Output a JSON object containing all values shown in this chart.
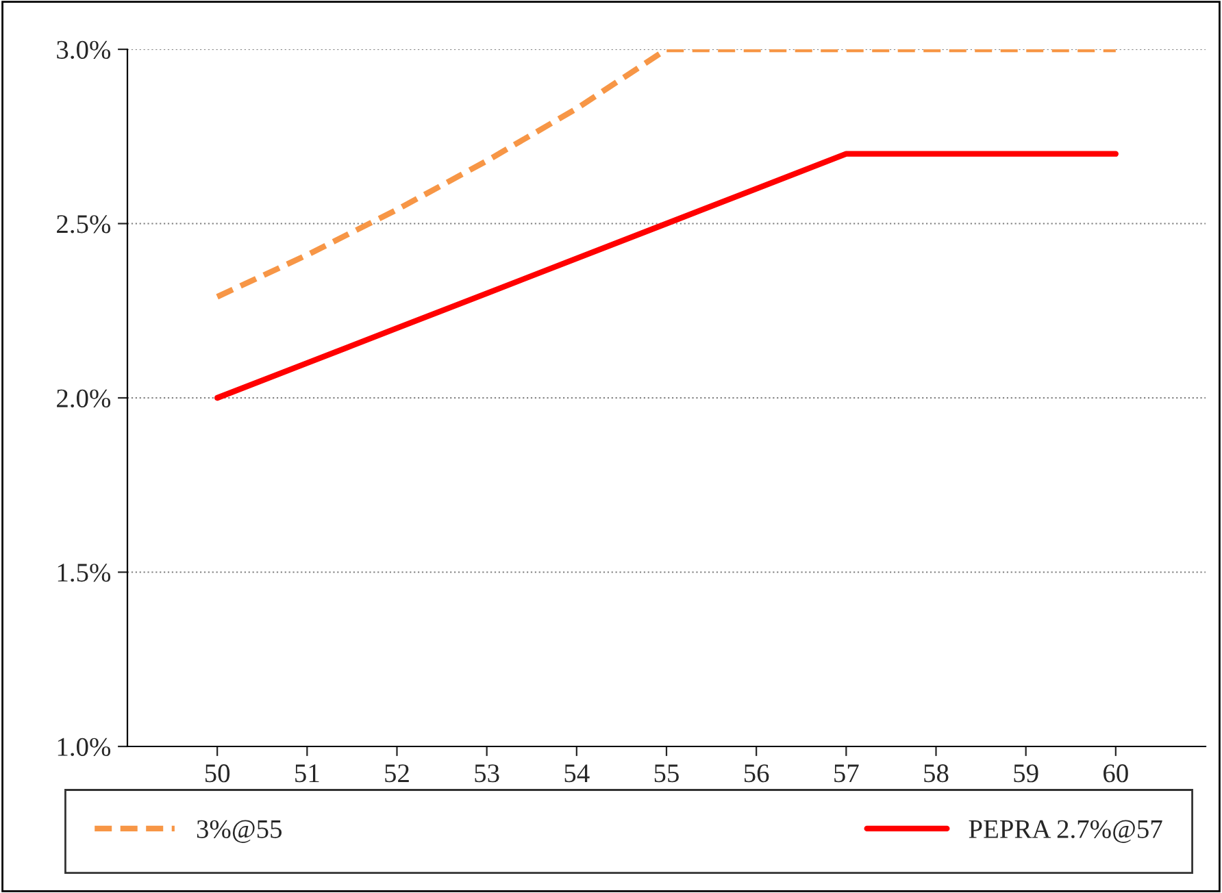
{
  "chart_data": {
    "type": "line",
    "x": [
      50,
      51,
      52,
      53,
      54,
      55,
      56,
      57,
      58,
      59,
      60
    ],
    "series": [
      {
        "name": "3%@55",
        "color": "#f79646",
        "line_style": "dashed",
        "values": [
          2.29,
          2.41,
          2.54,
          2.68,
          2.83,
          3.0,
          3.0,
          3.0,
          3.0,
          3.0,
          3.0
        ]
      },
      {
        "name": "PEPRA 2.7%@57",
        "color": "#ff0000",
        "line_style": "solid",
        "values": [
          2.0,
          2.1,
          2.2,
          2.3,
          2.4,
          2.5,
          2.6,
          2.7,
          2.7,
          2.7,
          2.7
        ]
      }
    ],
    "xlim": [
      49,
      61
    ],
    "xticks": [
      50,
      51,
      52,
      53,
      54,
      55,
      56,
      57,
      58,
      59,
      60
    ],
    "ylim": [
      1.0,
      3.0
    ],
    "yticks": [
      {
        "value": 1.0,
        "label": "1.0%"
      },
      {
        "value": 1.5,
        "label": "1.5%"
      },
      {
        "value": 2.0,
        "label": "2.0%"
      },
      {
        "value": 2.5,
        "label": "2.5%"
      },
      {
        "value": 3.0,
        "label": "3.0%"
      }
    ],
    "grid": "y",
    "legend": "bottom",
    "marker": "none"
  }
}
